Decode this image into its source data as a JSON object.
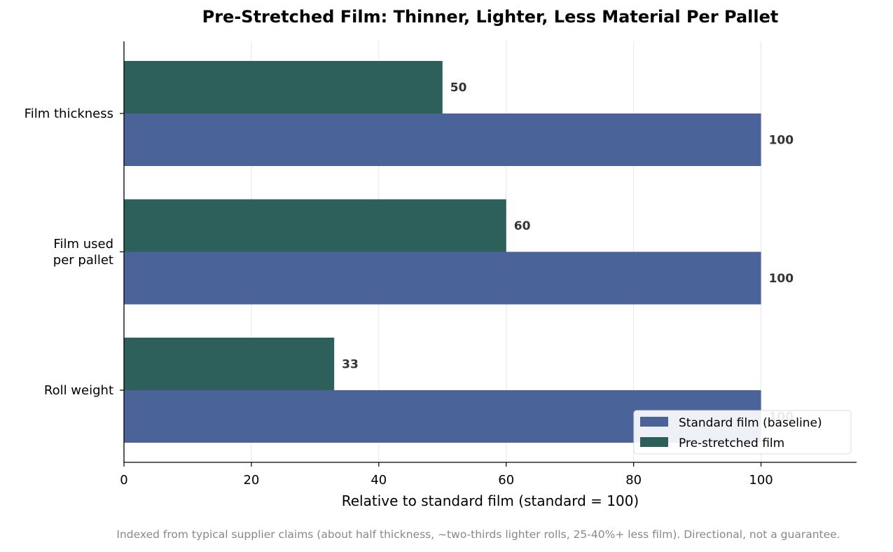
{
  "chart_data": {
    "type": "bar",
    "orientation": "horizontal",
    "title": "Pre-Stretched Film: Thinner, Lighter, Less Material Per Pallet",
    "xlabel": "Relative to standard film (standard = 100)",
    "ylabel": "",
    "xlim": [
      0,
      115
    ],
    "xticks": [
      "0",
      "20",
      "40",
      "60",
      "80",
      "100"
    ],
    "grid": "vertical",
    "legend_position": "bottom-right",
    "categories": [
      [
        "Film thickness"
      ],
      [
        "Film used",
        "per pallet"
      ],
      [
        "Roll weight"
      ]
    ],
    "series": [
      {
        "name": "Standard film (baseline)",
        "color": "#4a6399",
        "values": [
          100,
          100,
          100
        ],
        "labels": [
          "100",
          "100",
          "100"
        ]
      },
      {
        "name": "Pre-stretched film",
        "color": "#2e605b",
        "values": [
          50,
          60,
          33
        ],
        "labels": [
          "50",
          "60",
          "33"
        ]
      }
    ],
    "note": "Indexed from typical supplier claims (about half thickness, ~two-thirds lighter rolls, 25-40%+ less film). Directional, not a guarantee."
  }
}
